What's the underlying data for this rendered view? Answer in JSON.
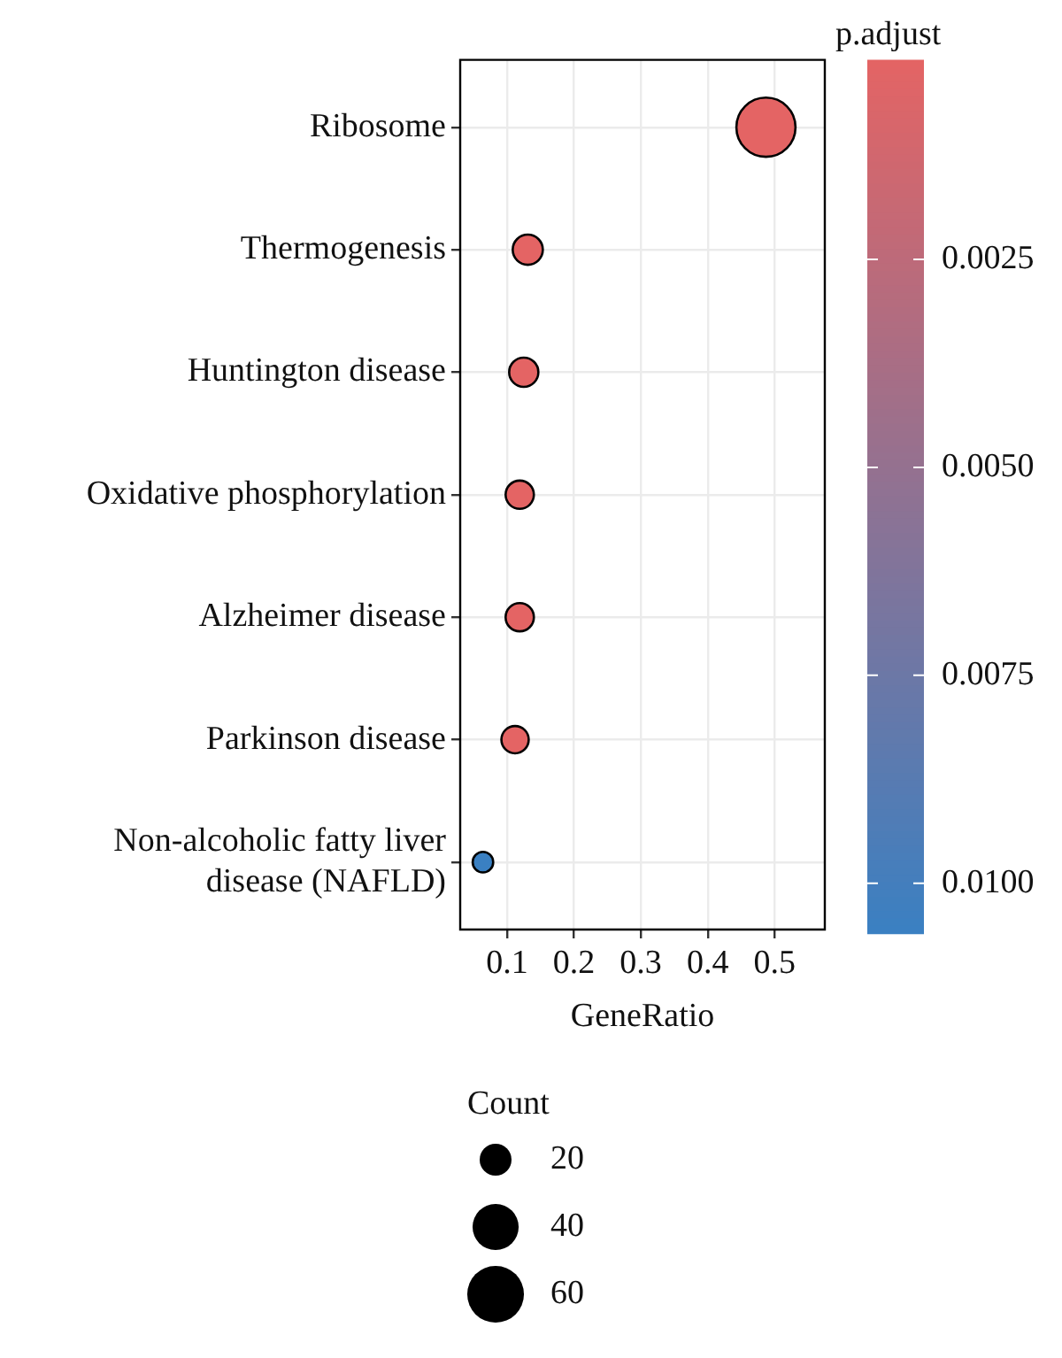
{
  "chart_data": {
    "type": "bubble",
    "xlabel": "GeneRatio",
    "clabel": "p.adjust",
    "legend_title": "Count",
    "grid": true,
    "orientation": "horizontal",
    "categories": [
      "Ribosome",
      "Thermogenesis",
      "Huntington disease",
      "Oxidative phosphorylation",
      "Alzheimer disease",
      "Parkinson disease",
      "Non-alcoholic fatty liver disease (NAFLD)"
    ],
    "values": [
      0.487,
      0.131,
      0.125,
      0.119,
      0.119,
      0.112,
      0.064
    ],
    "sizes": [
      66,
      18,
      17,
      16,
      16,
      15,
      9
    ],
    "cvalues": [
      0.0001,
      0.0001,
      0.0001,
      0.0001,
      0.0001,
      0.0001,
      0.0106
    ],
    "size_legend": [
      20,
      40,
      60
    ],
    "xlim": [
      0.03,
      0.575
    ],
    "xticks": [
      0.1,
      0.2,
      0.3,
      0.4,
      0.5
    ],
    "clim": [
      0.0001,
      0.0106
    ],
    "cticks": [
      0.0025,
      {
        "value": 0.005,
        "label": "0.0050"
      },
      0.0075,
      {
        "value": 0.01,
        "label": "0.0100"
      }
    ]
  }
}
